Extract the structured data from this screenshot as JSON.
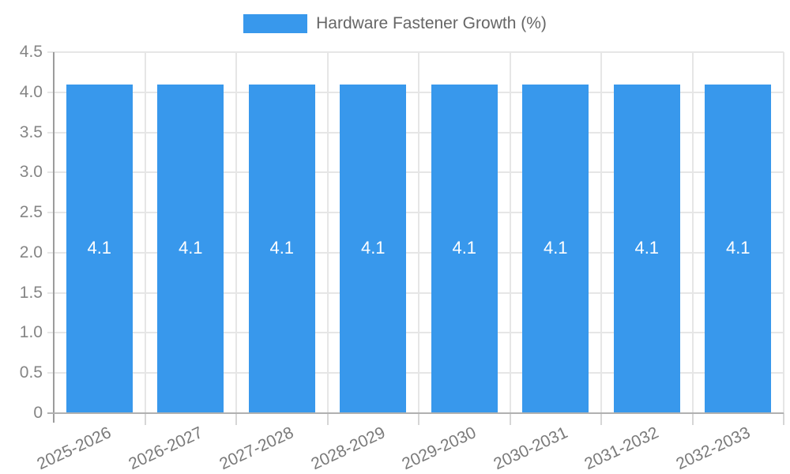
{
  "legend": {
    "label": "Hardware Fastener Growth (%)"
  },
  "chart_data": {
    "type": "bar",
    "title": "Hardware Fastener Growth (%)",
    "categories": [
      "2025-2026",
      "2026-2027",
      "2027-2028",
      "2028-2029",
      "2029-2030",
      "2030-2031",
      "2031-2032",
      "2032-2033"
    ],
    "values": [
      4.1,
      4.1,
      4.1,
      4.1,
      4.1,
      4.1,
      4.1,
      4.1
    ],
    "bar_labels": [
      "4.1",
      "4.1",
      "4.1",
      "4.1",
      "4.1",
      "4.1",
      "4.1",
      "4.1"
    ],
    "xlabel": "",
    "ylabel": "",
    "ylim": [
      0,
      4.5
    ],
    "ytick_values": [
      0,
      0.5,
      1.0,
      1.5,
      2.0,
      2.5,
      3.0,
      3.5,
      4.0,
      4.5
    ],
    "ytick_labels": [
      "0",
      "0.5",
      "1.0",
      "1.5",
      "2.0",
      "2.5",
      "3.0",
      "3.5",
      "4.0",
      "4.5"
    ],
    "grid": true,
    "legend_position": "top",
    "bar_color": "#3898ec",
    "bar_label_color": "#ffffff"
  }
}
